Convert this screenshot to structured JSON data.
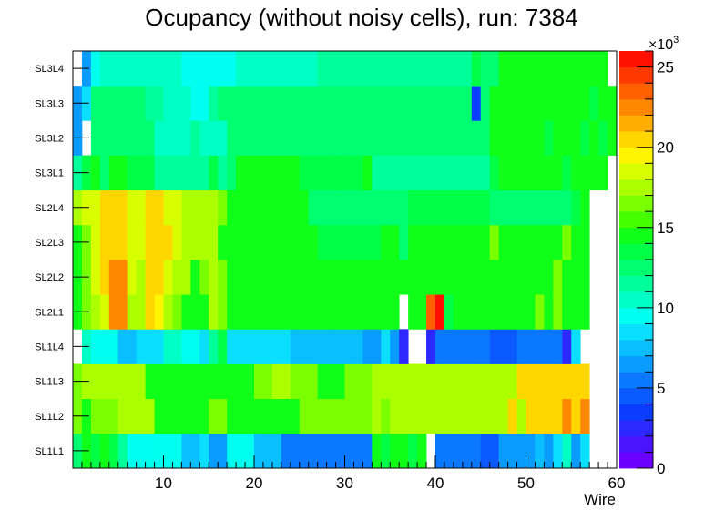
{
  "chart_data": {
    "type": "heatmap",
    "title": "Ocupancy (without noisy cells), run: 7384",
    "xlabel": "Wire",
    "ylabel": "",
    "x_range": [
      0,
      60
    ],
    "x_ticks": [
      "10",
      "20",
      "30",
      "40",
      "50",
      "60"
    ],
    "x_tick_values": [
      10,
      20,
      30,
      40,
      50,
      60
    ],
    "rows": [
      "SL1L1",
      "SL1L2",
      "SL1L3",
      "SL1L4",
      "SL2L1",
      "SL2L2",
      "SL2L3",
      "SL2L4",
      "SL3L1",
      "SL3L2",
      "SL3L3",
      "SL3L4"
    ],
    "row_values": [
      [
        12,
        14,
        13,
        15,
        13,
        11,
        9,
        9,
        9,
        9,
        9,
        9,
        7,
        7,
        8,
        6,
        6,
        9,
        9,
        9,
        7,
        7,
        7,
        5,
        5,
        5,
        5,
        5,
        5,
        5,
        5,
        5,
        5,
        14,
        13,
        15,
        14,
        13,
        14,
        0,
        5,
        5,
        5,
        5,
        5,
        4,
        4,
        6,
        6,
        6,
        6,
        7,
        6,
        8,
        10,
        6,
        8,
        0,
        0,
        0
      ],
      [
        16,
        15,
        16,
        16,
        16,
        17,
        17,
        17,
        17,
        15,
        15,
        15,
        15,
        15,
        15,
        16,
        16,
        15,
        15,
        15,
        15,
        15,
        15,
        15,
        15,
        16,
        16,
        16,
        16,
        16,
        16,
        16,
        16,
        17,
        16,
        17,
        17,
        17,
        17,
        17,
        17,
        17,
        17,
        17,
        17,
        17,
        17,
        17,
        20,
        17,
        20,
        20,
        20,
        20,
        22,
        20,
        22,
        0,
        0,
        0
      ],
      [
        16,
        17,
        17,
        17,
        17,
        17,
        17,
        17,
        14,
        14,
        14,
        14,
        14,
        14,
        14,
        15,
        15,
        15,
        15,
        15,
        16,
        16,
        17,
        17,
        16,
        16,
        16,
        15,
        15,
        15,
        16,
        16,
        16,
        17,
        17,
        17,
        17,
        17,
        17,
        17,
        17,
        17,
        17,
        17,
        17,
        17,
        17,
        17,
        17,
        20,
        20,
        20,
        20,
        20,
        20,
        20,
        20,
        0,
        0,
        0
      ],
      [
        0,
        10,
        9,
        9,
        9,
        7,
        7,
        8,
        8,
        8,
        10,
        10,
        9,
        9,
        8,
        11,
        13,
        8,
        8,
        8,
        8,
        8,
        8,
        8,
        7,
        7,
        7,
        7,
        7,
        7,
        7,
        7,
        6,
        6,
        8,
        6,
        2,
        0,
        0,
        2,
        5,
        5,
        5,
        5,
        5,
        5,
        4,
        4,
        4,
        5,
        5,
        5,
        5,
        5,
        2,
        8,
        0,
        0,
        0,
        0
      ],
      [
        15,
        16,
        17,
        18,
        22,
        22,
        17,
        17,
        20,
        19,
        17,
        16,
        14,
        15,
        15,
        17,
        16,
        14,
        14,
        14,
        15,
        14,
        14,
        14,
        15,
        14,
        14,
        14,
        14,
        14,
        14,
        14,
        14,
        14,
        14,
        14,
        0,
        14,
        14,
        23,
        25,
        13,
        15,
        15,
        15,
        15,
        14,
        14,
        14,
        14,
        15,
        16,
        14,
        16,
        15,
        14,
        14,
        0,
        0,
        0
      ],
      [
        14,
        16,
        18,
        20,
        22,
        22,
        18,
        17,
        20,
        20,
        18,
        17,
        17,
        15,
        16,
        17,
        16,
        14,
        14,
        14,
        14,
        15,
        15,
        15,
        15,
        15,
        15,
        14,
        14,
        14,
        14,
        14,
        14,
        14,
        14,
        14,
        14,
        14,
        14,
        14,
        14,
        14,
        14,
        14,
        14,
        15,
        15,
        15,
        15,
        15,
        15,
        14,
        14,
        16,
        15,
        15,
        15,
        0,
        0,
        0
      ],
      [
        14,
        16,
        18,
        20,
        20,
        20,
        18,
        18,
        20,
        20,
        20,
        18,
        17,
        17,
        17,
        17,
        15,
        14,
        14,
        14,
        14,
        14,
        14,
        14,
        15,
        15,
        15,
        13,
        13,
        13,
        13,
        13,
        13,
        13,
        14,
        15,
        12,
        15,
        15,
        15,
        15,
        15,
        15,
        15,
        15,
        15,
        16,
        14,
        14,
        14,
        15,
        15,
        15,
        15,
        16,
        15,
        15,
        0,
        0,
        0
      ],
      [
        17,
        18,
        18,
        20,
        20,
        20,
        18,
        18,
        20,
        20,
        18,
        18,
        17,
        17,
        17,
        17,
        16,
        15,
        15,
        15,
        15,
        15,
        15,
        15,
        14,
        14,
        12,
        12,
        12,
        12,
        12,
        12,
        12,
        12,
        12,
        12,
        12,
        13,
        13,
        13,
        13,
        13,
        13,
        13,
        13,
        13,
        12,
        12,
        12,
        12,
        12,
        12,
        12,
        12,
        12,
        13,
        14,
        0,
        0,
        0
      ],
      [
        11,
        13,
        14,
        12,
        14,
        14,
        13,
        13,
        13,
        11,
        11,
        11,
        11,
        11,
        11,
        13,
        11,
        12,
        14,
        14,
        14,
        14,
        14,
        14,
        14,
        13,
        13,
        13,
        13,
        13,
        13,
        13,
        14,
        11,
        11,
        11,
        11,
        11,
        11,
        11,
        11,
        11,
        11,
        11,
        11,
        11,
        13,
        15,
        15,
        15,
        15,
        15,
        14,
        15,
        13,
        14,
        15,
        14,
        15,
        0
      ],
      [
        6,
        0,
        12,
        12,
        12,
        12,
        12,
        12,
        12,
        10,
        10,
        10,
        10,
        11,
        10,
        10,
        10,
        12,
        12,
        12,
        12,
        12,
        12,
        12,
        12,
        12,
        12,
        12,
        12,
        12,
        12,
        12,
        12,
        12,
        12,
        12,
        12,
        12,
        12,
        12,
        12,
        12,
        12,
        12,
        12,
        12,
        14,
        14,
        14,
        14,
        14,
        14,
        13,
        15,
        14,
        15,
        13,
        14,
        13,
        14
      ],
      [
        6,
        8,
        12,
        12,
        12,
        12,
        12,
        12,
        11,
        11,
        10,
        10,
        10,
        9,
        9,
        11,
        12,
        12,
        12,
        12,
        12,
        12,
        12,
        12,
        12,
        12,
        12,
        12,
        12,
        12,
        12,
        12,
        12,
        12,
        12,
        12,
        12,
        12,
        12,
        12,
        12,
        12,
        12,
        12,
        3,
        12,
        14,
        14,
        14,
        15,
        15,
        15,
        14,
        14,
        15,
        14,
        15,
        13,
        14,
        14
      ],
      [
        0,
        6,
        9,
        10,
        10,
        10,
        10,
        10,
        10,
        10,
        10,
        10,
        9,
        9,
        9,
        9,
        9,
        9,
        10,
        10,
        10,
        10,
        10,
        10,
        10,
        10,
        10,
        11,
        11,
        11,
        11,
        11,
        11,
        11,
        11,
        11,
        11,
        11,
        11,
        11,
        11,
        11,
        11,
        11,
        13,
        12,
        12,
        14,
        14,
        14,
        14,
        15,
        15,
        14,
        14,
        15,
        14,
        15,
        15,
        0
      ]
    ],
    "z_range": [
      0,
      26
    ],
    "z_ticks": [
      "0",
      "5",
      "10",
      "15",
      "20",
      "25"
    ],
    "z_tick_values": [
      0,
      5,
      10,
      15,
      20,
      25
    ],
    "z_multiplier": "×10",
    "z_exponent": "3",
    "palette": [
      "#6c00ff",
      "#4a14ff",
      "#2b29ff",
      "#0a3dff",
      "#0a5aff",
      "#0a78ff",
      "#0a9bff",
      "#0abfff",
      "#0adfff",
      "#00ffee",
      "#00ffc4",
      "#00ff9a",
      "#00ff70",
      "#00ff45",
      "#10ff18",
      "#44ff00",
      "#7aff00",
      "#acff00",
      "#d8ff00",
      "#fff500",
      "#ffd600",
      "#ffae00",
      "#ff8800",
      "#ff6000",
      "#ff3800",
      "#ff1000"
    ]
  }
}
